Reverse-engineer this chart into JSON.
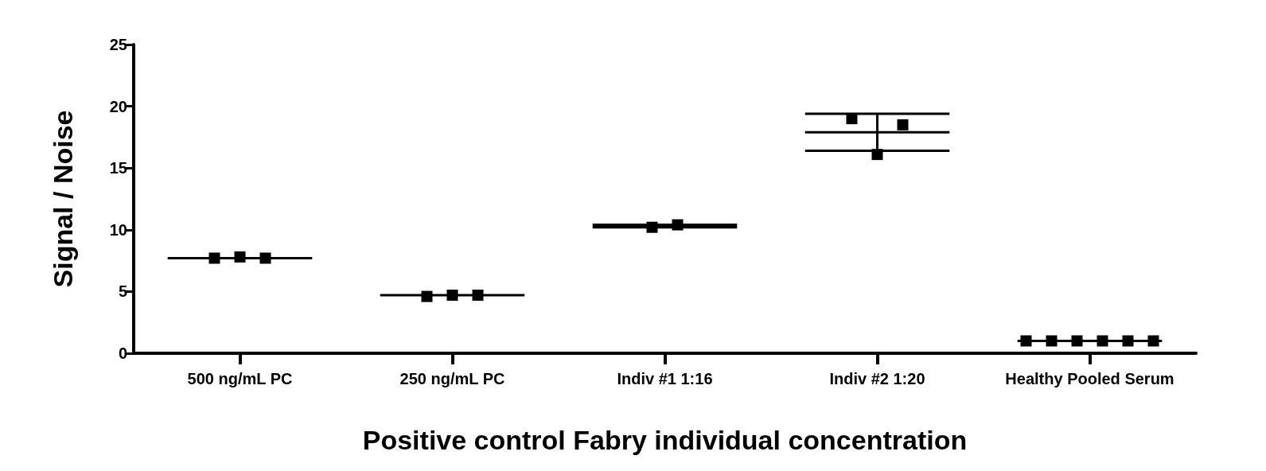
{
  "chart_data": {
    "type": "scatter",
    "xlabel": "Positive control Fabry individual concentration",
    "ylabel": "Signal / Noise",
    "categories": [
      "500 ng/mL PC",
      "250 ng/mL PC",
      "Indiv #1 1:16",
      "Indiv #2 1:20",
      "Healthy Pooled Serum"
    ],
    "ylim": [
      0,
      25
    ],
    "yticks": [
      0,
      5,
      10,
      15,
      20,
      25
    ],
    "grid": false,
    "series": [
      {
        "marker": "square",
        "color": "#000000",
        "x": [
          "500 ng/mL PC",
          "500 ng/mL PC",
          "500 ng/mL PC",
          "250 ng/mL PC",
          "250 ng/mL PC",
          "250 ng/mL PC",
          "Indiv #1 1:16",
          "Indiv #1 1:16",
          "Indiv #2 1:20",
          "Indiv #2 1:20",
          "Indiv #2 1:20",
          "Healthy Pooled Serum",
          "Healthy Pooled Serum",
          "Healthy Pooled Serum",
          "Healthy Pooled Serum",
          "Healthy Pooled Serum",
          "Healthy Pooled Serum"
        ],
        "values": [
          7.7,
          7.8,
          7.7,
          4.6,
          4.7,
          4.7,
          10.2,
          10.4,
          19.0,
          16.1,
          18.5,
          1.0,
          1.0,
          1.0,
          1.0,
          1.0,
          1.0
        ]
      },
      {
        "type": "box",
        "color": "#000000",
        "boxes": [
          {
            "low": 7.7,
            "q1": 7.7,
            "median": 7.7,
            "q3": 7.7,
            "high": 7.7
          },
          {
            "low": 4.7,
            "q1": 4.7,
            "median": 4.7,
            "q3": 4.7,
            "high": 4.7
          },
          {
            "low": 10.2,
            "q1": 10.3,
            "median": 10.3,
            "q3": 10.3,
            "high": 10.4
          },
          {
            "low": 16.4,
            "q1": 17.9,
            "median": 17.9,
            "q3": 17.9,
            "high": 19.4
          },
          {
            "low": 1.0,
            "q1": 1.0,
            "median": 1.0,
            "q3": 1.0,
            "high": 1.0
          }
        ]
      }
    ]
  }
}
